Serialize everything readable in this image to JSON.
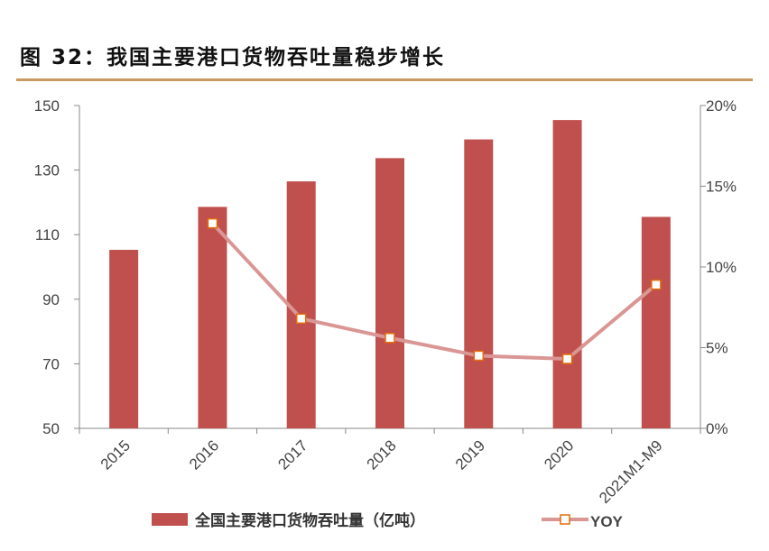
{
  "title": "图 32：我国主要港口货物吞吐量稳步增长",
  "colors": {
    "bar": "#c0504d",
    "line": "#d99694",
    "marker_edge": "#e46c0a",
    "rule": "#c9995f"
  },
  "chart_data": {
    "type": "bar",
    "title": "图 32：我国主要港口货物吞吐量稳步增长",
    "categories": [
      "2015",
      "2016",
      "2017",
      "2018",
      "2019",
      "2020",
      "2021M1-M9"
    ],
    "series": [
      {
        "name": "全国主要港口货物吞吐量（亿吨）",
        "type": "bar",
        "axis": "left",
        "values": [
          105.3,
          118.6,
          126.5,
          133.7,
          139.5,
          145.5,
          115.5
        ]
      },
      {
        "name": "YOY",
        "type": "line",
        "axis": "right",
        "values": [
          null,
          12.7,
          6.8,
          5.6,
          4.5,
          4.3,
          8.9
        ]
      }
    ],
    "y_left": {
      "range": [
        50,
        150
      ],
      "ticks": [
        "50",
        "70",
        "90",
        "110",
        "130",
        "150"
      ]
    },
    "y_right": {
      "range": [
        0,
        20
      ],
      "ticks": [
        "0%",
        "5%",
        "10%",
        "15%",
        "20%"
      ]
    },
    "grid": false,
    "legend": "bottom"
  }
}
